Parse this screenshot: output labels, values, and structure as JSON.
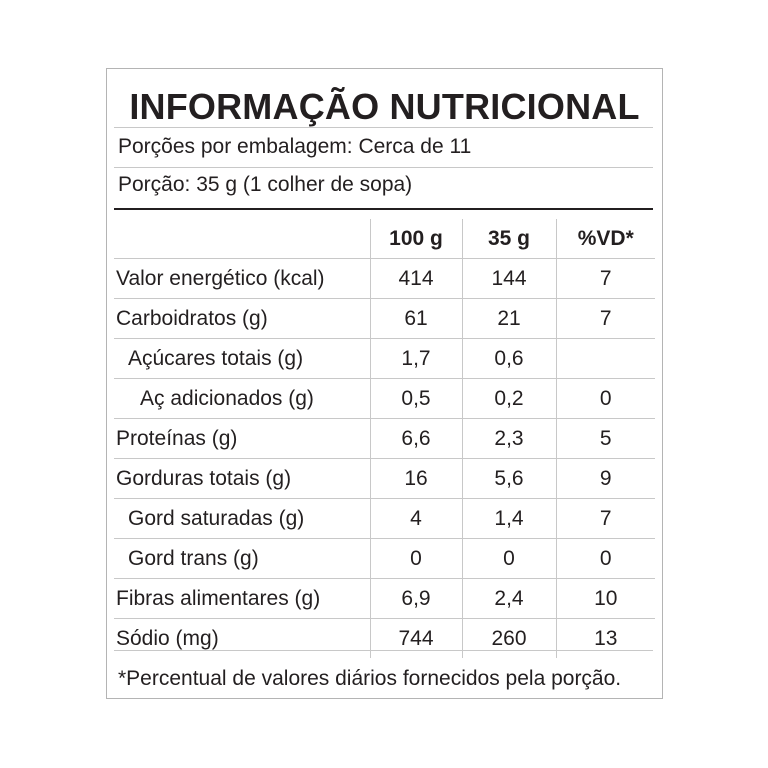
{
  "title": "INFORMAÇÃO NUTRICIONAL",
  "servings_per_package": "Porções por embalagem: Cerca de 11",
  "serving_size": "Porção: 35 g (1 colher de sopa)",
  "columns": [
    "",
    "100 g",
    "35 g",
    "%VD*"
  ],
  "rows": [
    {
      "name": "Valor energético (kcal)",
      "per100": "414",
      "perServing": "144",
      "dv": "7",
      "indent": 0
    },
    {
      "name": "Carboidratos (g)",
      "per100": "61",
      "perServing": "21",
      "dv": "7",
      "indent": 0
    },
    {
      "name": "Açúcares totais (g)",
      "per100": "1,7",
      "perServing": "0,6",
      "dv": "",
      "indent": 1
    },
    {
      "name": "Aç adicionados (g)",
      "per100": "0,5",
      "perServing": "0,2",
      "dv": "0",
      "indent": 2
    },
    {
      "name": "Proteínas (g)",
      "per100": "6,6",
      "perServing": "2,3",
      "dv": "5",
      "indent": 0
    },
    {
      "name": "Gorduras totais (g)",
      "per100": "16",
      "perServing": "5,6",
      "dv": "9",
      "indent": 0
    },
    {
      "name": "Gord saturadas (g)",
      "per100": "4",
      "perServing": "1,4",
      "dv": "7",
      "indent": 1
    },
    {
      "name": "Gord trans (g)",
      "per100": "0",
      "perServing": "0",
      "dv": "0",
      "indent": 1
    },
    {
      "name": "Fibras alimentares (g)",
      "per100": "6,9",
      "perServing": "2,4",
      "dv": "10",
      "indent": 0
    },
    {
      "name": "Sódio (mg)",
      "per100": "744",
      "perServing": "260",
      "dv": "13",
      "indent": 0
    }
  ],
  "footnote": "*Percentual de valores diários fornecidos pela porção."
}
